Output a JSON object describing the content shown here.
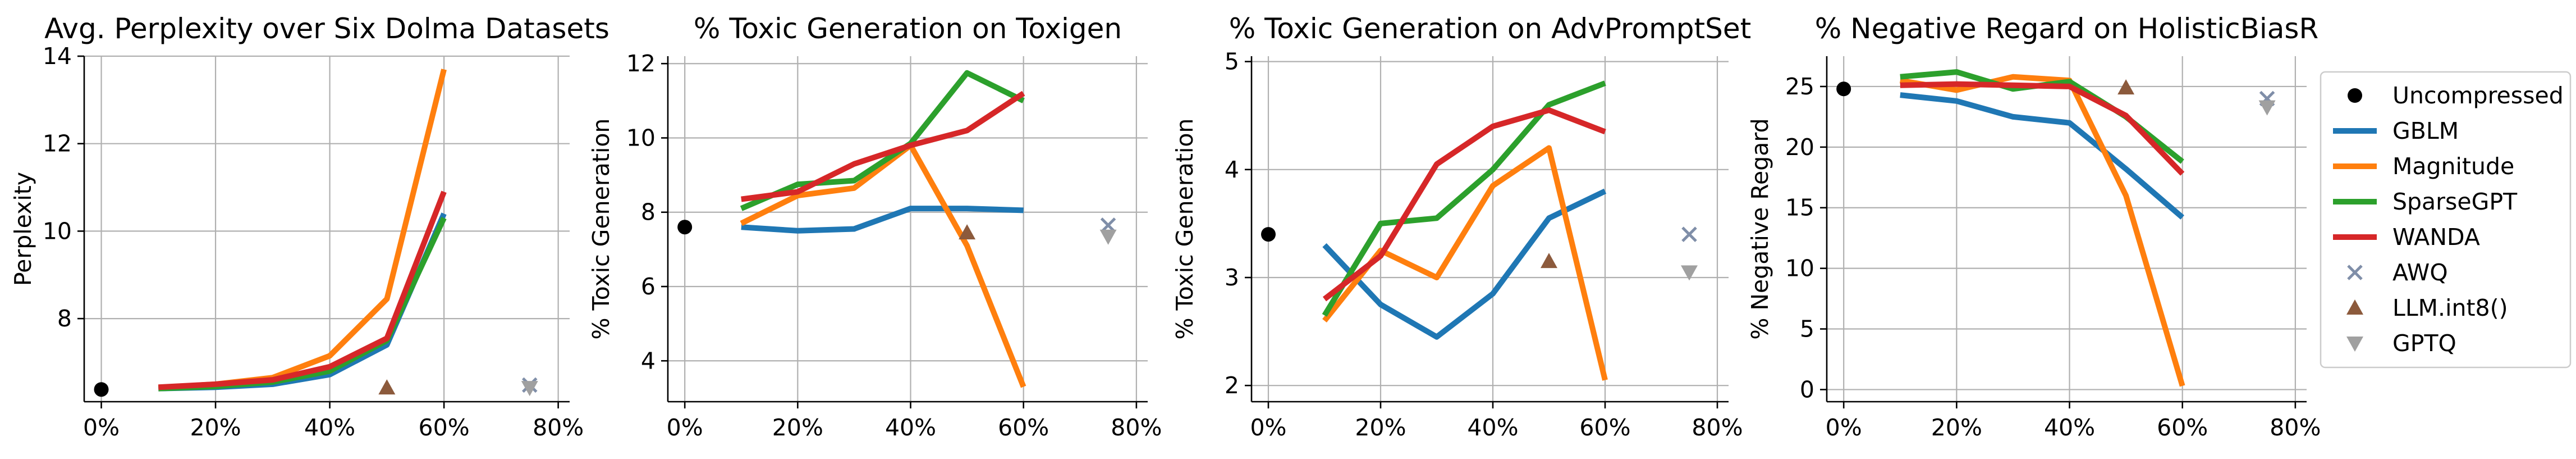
{
  "colors": {
    "Uncompressed": "#000000",
    "GBLM": "#1f77b4",
    "Magnitude": "#ff7f0e",
    "SparseGPT": "#2ca02c",
    "WANDA": "#d62728",
    "AWQ": "#7f8ea8",
    "LLM.int8()": "#8c5a3c",
    "GPTQ": "#a0a0a0"
  },
  "legend": {
    "placement": "right",
    "entries": [
      {
        "label": "Uncompressed",
        "marker": "circle"
      },
      {
        "label": "GBLM",
        "marker": "line"
      },
      {
        "label": "Magnitude",
        "marker": "line"
      },
      {
        "label": "SparseGPT",
        "marker": "line"
      },
      {
        "label": "WANDA",
        "marker": "line"
      },
      {
        "label": "AWQ",
        "marker": "x"
      },
      {
        "label": "LLM.int8()",
        "marker": "triangle-up"
      },
      {
        "label": "GPTQ",
        "marker": "triangle-down"
      }
    ]
  },
  "chart_data": [
    {
      "type": "line",
      "title": "Avg. Perplexity over Six Dolma Datasets",
      "xlabel": "",
      "ylabel": "Perplexity",
      "xlim": [
        -3,
        82
      ],
      "ylim": [
        6.1,
        14
      ],
      "xticks": [
        0,
        20,
        40,
        60,
        80
      ],
      "xticklabels": [
        "0%",
        "20%",
        "40%",
        "60%",
        "80%"
      ],
      "yticks": [
        8,
        10,
        12,
        14
      ],
      "yticklabels": [
        "8",
        "10",
        "12",
        "14"
      ],
      "grid": true,
      "x": [
        10,
        20,
        30,
        40,
        50,
        60
      ],
      "series": [
        {
          "name": "GBLM",
          "values": [
            6.4,
            6.43,
            6.5,
            6.72,
            7.4,
            10.4
          ]
        },
        {
          "name": "Magnitude",
          "values": [
            6.42,
            6.5,
            6.65,
            7.15,
            8.45,
            13.7
          ]
        },
        {
          "name": "SparseGPT",
          "values": [
            6.4,
            6.45,
            6.55,
            6.8,
            7.5,
            10.3
          ]
        },
        {
          "name": "WANDA",
          "values": [
            6.43,
            6.5,
            6.6,
            6.9,
            7.55,
            10.9
          ]
        }
      ],
      "points": [
        {
          "name": "Uncompressed",
          "x": 0,
          "y": 6.38
        },
        {
          "name": "AWQ",
          "x": 75,
          "y": 6.48
        },
        {
          "name": "LLM.int8()",
          "x": 50,
          "y": 6.42
        },
        {
          "name": "GPTQ",
          "x": 75,
          "y": 6.42
        }
      ]
    },
    {
      "type": "line",
      "title": "% Toxic Generation on Toxigen",
      "xlabel": "",
      "ylabel": "% Toxic Generation",
      "xlim": [
        -3,
        82
      ],
      "ylim": [
        2.9,
        12.2
      ],
      "xticks": [
        0,
        20,
        40,
        60,
        80
      ],
      "xticklabels": [
        "0%",
        "20%",
        "40%",
        "60%",
        "80%"
      ],
      "yticks": [
        4,
        6,
        8,
        10,
        12
      ],
      "yticklabels": [
        "4",
        "6",
        "8",
        "10",
        "12"
      ],
      "grid": true,
      "x": [
        10,
        20,
        30,
        40,
        50,
        60
      ],
      "series": [
        {
          "name": "GBLM",
          "values": [
            7.6,
            7.5,
            7.55,
            8.1,
            8.1,
            8.05
          ]
        },
        {
          "name": "Magnitude",
          "values": [
            7.7,
            8.45,
            8.65,
            9.8,
            7.1,
            3.3
          ]
        },
        {
          "name": "SparseGPT",
          "values": [
            8.1,
            8.75,
            8.85,
            9.85,
            11.75,
            11.0
          ]
        },
        {
          "name": "WANDA",
          "values": [
            8.35,
            8.55,
            9.3,
            9.8,
            10.2,
            11.2
          ]
        }
      ],
      "points": [
        {
          "name": "Uncompressed",
          "x": 0,
          "y": 7.6
        },
        {
          "name": "AWQ",
          "x": 75,
          "y": 7.65
        },
        {
          "name": "LLM.int8()",
          "x": 50,
          "y": 7.45
        },
        {
          "name": "GPTQ",
          "x": 75,
          "y": 7.35
        }
      ]
    },
    {
      "type": "line",
      "title": "% Toxic Generation on AdvPromptSet",
      "xlabel": "",
      "ylabel": "% Toxic Generation",
      "xlim": [
        -3,
        82
      ],
      "ylim": [
        1.85,
        5.05
      ],
      "xticks": [
        0,
        20,
        40,
        60,
        80
      ],
      "xticklabels": [
        "0%",
        "20%",
        "40%",
        "60%",
        "80%"
      ],
      "yticks": [
        2,
        3,
        4,
        5
      ],
      "yticklabels": [
        "2",
        "3",
        "4",
        "5"
      ],
      "grid": true,
      "x": [
        10,
        20,
        30,
        40,
        50,
        60
      ],
      "series": [
        {
          "name": "GBLM",
          "values": [
            3.3,
            2.75,
            2.45,
            2.85,
            3.55,
            3.8
          ]
        },
        {
          "name": "Magnitude",
          "values": [
            2.6,
            3.25,
            3.0,
            3.85,
            4.2,
            2.05
          ]
        },
        {
          "name": "SparseGPT",
          "values": [
            2.65,
            3.5,
            3.55,
            4.0,
            4.6,
            4.8
          ]
        },
        {
          "name": "WANDA",
          "values": [
            2.8,
            3.2,
            4.05,
            4.4,
            4.55,
            4.35
          ]
        }
      ],
      "points": [
        {
          "name": "Uncompressed",
          "x": 0,
          "y": 3.4
        },
        {
          "name": "AWQ",
          "x": 75,
          "y": 3.4
        },
        {
          "name": "LLM.int8()",
          "x": 50,
          "y": 3.15
        },
        {
          "name": "GPTQ",
          "x": 75,
          "y": 3.05
        }
      ]
    },
    {
      "type": "line",
      "title": "% Negative Regard on HolisticBiasR",
      "xlabel": "",
      "ylabel": "% Negative Regard",
      "xlim": [
        -3,
        82
      ],
      "ylim": [
        -1,
        27.5
      ],
      "xticks": [
        0,
        20,
        40,
        60,
        80
      ],
      "xticklabels": [
        "0%",
        "20%",
        "40%",
        "60%",
        "80%"
      ],
      "yticks": [
        0,
        5,
        10,
        15,
        20,
        25
      ],
      "yticklabels": [
        "0",
        "5",
        "10",
        "15",
        "20",
        "25"
      ],
      "grid": true,
      "x": [
        10,
        20,
        30,
        40,
        50,
        60
      ],
      "series": [
        {
          "name": "GBLM",
          "values": [
            24.3,
            23.8,
            22.5,
            22.0,
            18.2,
            14.2
          ]
        },
        {
          "name": "Magnitude",
          "values": [
            25.5,
            24.7,
            25.8,
            25.5,
            16.0,
            0.3
          ]
        },
        {
          "name": "SparseGPT",
          "values": [
            25.8,
            26.2,
            24.8,
            25.4,
            22.5,
            18.8
          ]
        },
        {
          "name": "WANDA",
          "values": [
            25.1,
            25.2,
            25.1,
            25.0,
            22.6,
            17.8
          ]
        }
      ],
      "points": [
        {
          "name": "Uncompressed",
          "x": 0,
          "y": 24.8
        },
        {
          "name": "AWQ",
          "x": 75,
          "y": 24.0
        },
        {
          "name": "LLM.int8()",
          "x": 50,
          "y": 24.9
        },
        {
          "name": "GPTQ",
          "x": 75,
          "y": 23.3
        }
      ]
    }
  ]
}
